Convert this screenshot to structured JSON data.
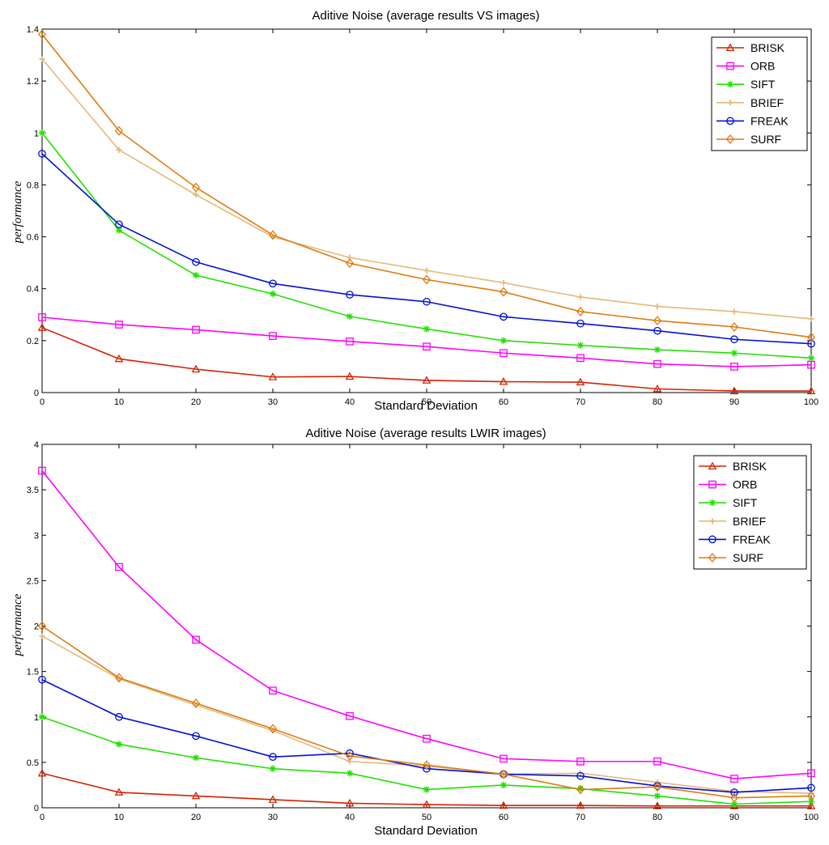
{
  "chart_data": [
    {
      "type": "line",
      "title": "Aditive Noise (average results VS images)",
      "xlabel": "Standard Deviation",
      "ylabel": "performance",
      "xlim": [
        0,
        100
      ],
      "ylim": [
        0,
        1.4
      ],
      "xticks": [
        0,
        10,
        20,
        30,
        40,
        50,
        60,
        70,
        80,
        90,
        100
      ],
      "yticks": [
        0,
        0.2,
        0.4,
        0.6,
        0.8,
        1,
        1.2,
        1.4
      ],
      "ytick_labels": [
        "0",
        "0.2",
        "0.4",
        "0.6",
        "0.8",
        "1",
        "1.2",
        "1.4"
      ],
      "legend_position": "top-right",
      "x": [
        0,
        10,
        20,
        30,
        40,
        50,
        60,
        70,
        80,
        90,
        100
      ],
      "series": [
        {
          "name": "BRISK",
          "color": "#d62000",
          "marker": "triangle",
          "values": [
            0.25,
            0.13,
            0.09,
            0.06,
            0.062,
            0.047,
            0.042,
            0.04,
            0.014,
            0.006,
            0.006
          ]
        },
        {
          "name": "ORB",
          "color": "#ff00ff",
          "marker": "square",
          "values": [
            0.29,
            0.262,
            0.242,
            0.218,
            0.197,
            0.177,
            0.152,
            0.133,
            0.11,
            0.1,
            0.107
          ]
        },
        {
          "name": "SIFT",
          "color": "#22e000",
          "marker": "star",
          "values": [
            1.0,
            0.625,
            0.452,
            0.38,
            0.293,
            0.245,
            0.2,
            0.182,
            0.165,
            0.152,
            0.133
          ]
        },
        {
          "name": "BRIEF",
          "color": "#e5b97a",
          "marker": "plus",
          "values": [
            1.285,
            0.935,
            0.762,
            0.6,
            0.52,
            0.47,
            0.423,
            0.368,
            0.332,
            0.312,
            0.284
          ]
        },
        {
          "name": "FREAK",
          "color": "#0010d8",
          "marker": "circle",
          "values": [
            0.92,
            0.648,
            0.503,
            0.42,
            0.377,
            0.35,
            0.292,
            0.266,
            0.238,
            0.205,
            0.188
          ]
        },
        {
          "name": "SURF",
          "color": "#e07a10",
          "marker": "diamond",
          "values": [
            1.38,
            1.008,
            0.79,
            0.607,
            0.498,
            0.435,
            0.388,
            0.312,
            0.277,
            0.253,
            0.213
          ]
        }
      ]
    },
    {
      "type": "line",
      "title": "Aditive Noise (average results LWIR images)",
      "xlabel": "Standard Deviation",
      "ylabel": "performance",
      "xlim": [
        0,
        100
      ],
      "ylim": [
        0,
        4
      ],
      "xticks": [
        0,
        10,
        20,
        30,
        40,
        50,
        60,
        70,
        80,
        90,
        100
      ],
      "yticks": [
        0,
        0.5,
        1,
        1.5,
        2,
        2.5,
        3,
        3.5,
        4
      ],
      "ytick_labels": [
        "0",
        "0.5",
        "1",
        "1.5",
        "2",
        "2.5",
        "3",
        "3.5",
        "4"
      ],
      "legend_position": "top-right",
      "x": [
        0,
        10,
        20,
        30,
        40,
        50,
        60,
        70,
        80,
        90,
        100
      ],
      "series": [
        {
          "name": "BRISK",
          "color": "#d62000",
          "marker": "triangle",
          "values": [
            0.38,
            0.17,
            0.13,
            0.09,
            0.05,
            0.035,
            0.025,
            0.025,
            0.02,
            0.02,
            0.02
          ]
        },
        {
          "name": "ORB",
          "color": "#ff00ff",
          "marker": "square",
          "values": [
            3.71,
            2.65,
            1.85,
            1.29,
            1.01,
            0.76,
            0.54,
            0.51,
            0.51,
            0.32,
            0.38
          ]
        },
        {
          "name": "SIFT",
          "color": "#22e000",
          "marker": "star",
          "values": [
            1.0,
            0.7,
            0.55,
            0.43,
            0.38,
            0.2,
            0.25,
            0.21,
            0.13,
            0.04,
            0.07
          ]
        },
        {
          "name": "BRIEF",
          "color": "#e5b97a",
          "marker": "plus",
          "values": [
            1.89,
            1.42,
            1.13,
            0.85,
            0.51,
            0.46,
            0.37,
            0.38,
            0.28,
            0.18,
            0.16
          ]
        },
        {
          "name": "FREAK",
          "color": "#0010d8",
          "marker": "circle",
          "values": [
            1.41,
            1.0,
            0.79,
            0.56,
            0.6,
            0.43,
            0.37,
            0.35,
            0.24,
            0.17,
            0.22
          ]
        },
        {
          "name": "SURF",
          "color": "#e07a10",
          "marker": "diamond",
          "values": [
            2.0,
            1.43,
            1.15,
            0.87,
            0.57,
            0.47,
            0.37,
            0.2,
            0.23,
            0.11,
            0.13
          ]
        }
      ]
    }
  ]
}
